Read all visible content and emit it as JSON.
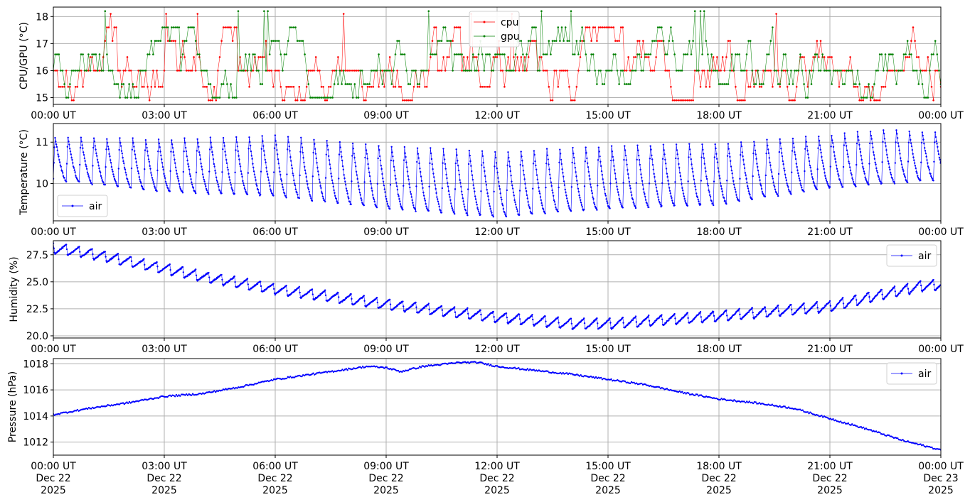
{
  "figure": {
    "x_tick_labels_top": [
      "00:00 UT",
      "03:00 UT",
      "06:00 UT",
      "09:00 UT",
      "12:00 UT",
      "15:00 UT",
      "18:00 UT",
      "21:00 UT",
      "00:00 UT"
    ],
    "x_tick_labels_bottom": [
      [
        "00:00 UT",
        "Dec 22",
        "2025"
      ],
      [
        "03:00 UT",
        "Dec 22",
        "2025"
      ],
      [
        "06:00 UT",
        "Dec 22",
        "2025"
      ],
      [
        "09:00 UT",
        "Dec 22",
        "2025"
      ],
      [
        "12:00 UT",
        "Dec 22",
        "2025"
      ],
      [
        "15:00 UT",
        "Dec 22",
        "2025"
      ],
      [
        "18:00 UT",
        "Dec 22",
        "2025"
      ],
      [
        "21:00 UT",
        "Dec 22",
        "2025"
      ],
      [
        "00:00 UT",
        "Dec 23",
        "2025"
      ]
    ]
  },
  "chart_data": [
    {
      "type": "line",
      "ylabel": "CPU/GPU (°C)",
      "xlim": [
        "2025-12-22T00:00Z",
        "2025-12-23T00:00Z"
      ],
      "ylim": [
        14.75,
        18.35
      ],
      "yticks": [
        15,
        16,
        17,
        18
      ],
      "ytick_labels": [
        "15",
        "16",
        "17",
        "18"
      ],
      "grid": true,
      "legend": "top-center",
      "series": [
        {
          "name": "cpu",
          "color": "#ff0000",
          "levels": [
            14.9,
            15.4,
            16.0,
            16.5,
            17.1,
            17.6,
            18.1
          ],
          "typical": 16.0
        },
        {
          "name": "gpu",
          "color": "#008000",
          "levels": [
            15.0,
            15.5,
            16.0,
            16.6,
            17.1,
            17.6,
            18.2
          ],
          "typical": 16.0
        }
      ]
    },
    {
      "type": "line",
      "ylabel": "Temperature (°C)",
      "xlim": [
        "2025-12-22T00:00Z",
        "2025-12-23T00:00Z"
      ],
      "ylim": [
        9.1,
        11.45
      ],
      "yticks": [
        10,
        11
      ],
      "ytick_labels": [
        "10",
        "11"
      ],
      "grid": true,
      "legend": "lower-left",
      "series": [
        {
          "name": "air",
          "color": "#0000ff",
          "cycle_hours": 0.35,
          "cycle_min": [
            [
              0,
              10.1
            ],
            [
              3,
              9.8
            ],
            [
              6,
              9.7
            ],
            [
              9,
              9.4
            ],
            [
              12,
              9.2
            ],
            [
              15,
              9.4
            ],
            [
              18,
              9.5
            ],
            [
              21,
              9.9
            ],
            [
              24,
              10.1
            ]
          ],
          "cycle_max": [
            [
              0,
              11.15
            ],
            [
              3,
              11.1
            ],
            [
              6,
              11.2
            ],
            [
              9,
              10.95
            ],
            [
              12,
              10.8
            ],
            [
              15,
              10.95
            ],
            [
              18,
              11.0
            ],
            [
              21,
              11.2
            ],
            [
              22.5,
              11.35
            ],
            [
              24,
              11.25
            ]
          ]
        }
      ]
    },
    {
      "type": "line",
      "ylabel": "Humidity (%)",
      "xlim": [
        "2025-12-22T00:00Z",
        "2025-12-23T00:00Z"
      ],
      "ylim": [
        19.8,
        28.8
      ],
      "yticks": [
        20.0,
        22.5,
        25.0,
        27.5
      ],
      "ytick_labels": [
        "20.0",
        "22.5",
        "25.0",
        "27.5"
      ],
      "grid": true,
      "legend": "upper-right",
      "series": [
        {
          "name": "air",
          "color": "#0000ff",
          "cycle_hours": 0.35,
          "trend": [
            [
              0,
              28.2
            ],
            [
              1,
              27.7
            ],
            [
              2,
              27.0
            ],
            [
              3,
              26.3
            ],
            [
              4,
              25.6
            ],
            [
              6,
              24.4
            ],
            [
              9,
              23.0
            ],
            [
              12,
              21.8
            ],
            [
              14,
              21.2
            ],
            [
              15,
              21.2
            ],
            [
              18,
              21.9
            ],
            [
              21,
              22.8
            ],
            [
              22,
              23.6
            ],
            [
              23.5,
              24.7
            ],
            [
              24,
              24.8
            ]
          ],
          "dip": 1.0
        }
      ]
    },
    {
      "type": "line",
      "ylabel": "Pressure (hPa)",
      "xlim": [
        "2025-12-22T00:00Z",
        "2025-12-23T00:00Z"
      ],
      "ylim": [
        1011.0,
        1018.4
      ],
      "yticks": [
        1012,
        1014,
        1016,
        1018
      ],
      "ytick_labels": [
        "1012",
        "1014",
        "1016",
        "1018"
      ],
      "grid": true,
      "legend": "upper-right",
      "series": [
        {
          "name": "air",
          "color": "#0000ff",
          "points": [
            [
              0,
              1014.1
            ],
            [
              1,
              1014.6
            ],
            [
              2,
              1015.0
            ],
            [
              3,
              1015.5
            ],
            [
              4,
              1015.7
            ],
            [
              5,
              1016.2
            ],
            [
              6,
              1016.8
            ],
            [
              7,
              1017.2
            ],
            [
              8,
              1017.6
            ],
            [
              8.5,
              1017.8
            ],
            [
              9,
              1017.7
            ],
            [
              9.4,
              1017.4
            ],
            [
              10,
              1017.8
            ],
            [
              11,
              1018.1
            ],
            [
              11.5,
              1018.1
            ],
            [
              12,
              1017.8
            ],
            [
              13,
              1017.5
            ],
            [
              14,
              1017.2
            ],
            [
              15,
              1016.8
            ],
            [
              16,
              1016.4
            ],
            [
              17,
              1015.8
            ],
            [
              18,
              1015.3
            ],
            [
              19,
              1015.0
            ],
            [
              20,
              1014.6
            ],
            [
              21,
              1013.8
            ],
            [
              22,
              1013.0
            ],
            [
              23,
              1012.1
            ],
            [
              24,
              1011.4
            ]
          ]
        }
      ]
    }
  ]
}
